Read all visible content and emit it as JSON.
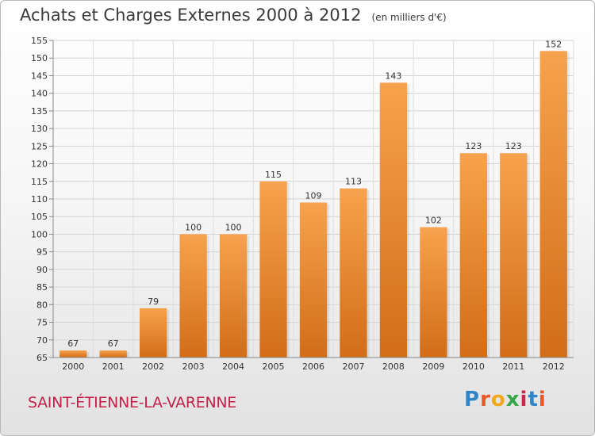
{
  "header": {
    "title": "Achats et Charges Externes 2000 à 2012",
    "subtitle": "(en milliers d'€)"
  },
  "footer": {
    "commune": "SAINT-ÉTIENNE-LA-VARENNE",
    "logo_letters": [
      "P",
      "r",
      "o",
      "x",
      "i",
      "t",
      "i"
    ],
    "logo_colors": [
      "#2e86c8",
      "#e8572a",
      "#f2a81d",
      "#3aa54a",
      "#c7284b",
      "#2e86c8",
      "#e8572a"
    ]
  },
  "chart_data": {
    "type": "bar",
    "title": "Achats et Charges Externes 2000 à 2012",
    "subtitle": "(en milliers d'€)",
    "categories": [
      "2000",
      "2001",
      "2002",
      "2003",
      "2004",
      "2005",
      "2006",
      "2007",
      "2008",
      "2009",
      "2010",
      "2011",
      "2012"
    ],
    "values": [
      67,
      67,
      79,
      100,
      100,
      115,
      109,
      113,
      143,
      102,
      123,
      123,
      152
    ],
    "ylim": [
      65,
      155
    ],
    "ytick_step": 5,
    "grid": true,
    "bar_color_top": "#f7a24e",
    "bar_color_bottom": "#d26d18"
  }
}
